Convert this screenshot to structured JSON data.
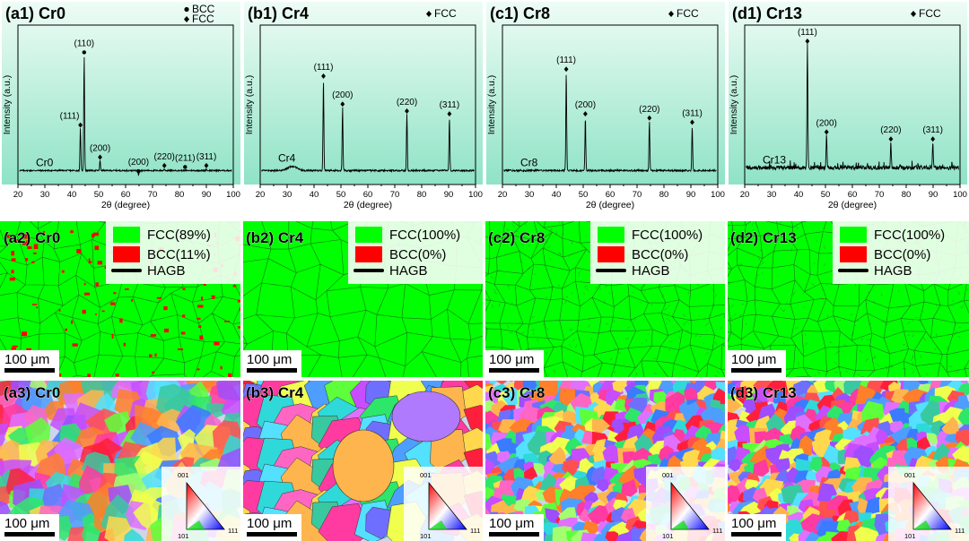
{
  "chart_data": [
    {
      "type": "line",
      "title": "(a1) Cr0",
      "sample_label": "Cr0",
      "xlabel": "2θ (degree)",
      "ylabel": "Intensity (a.u.)",
      "xlim": [
        20,
        100
      ],
      "xticks": [
        20,
        30,
        40,
        50,
        60,
        70,
        80,
        90,
        100
      ],
      "legend": [
        "BCC",
        "FCC"
      ],
      "baseline": 0.1,
      "peaks": [
        {
          "x": 43.2,
          "y": 0.4,
          "label": "(111)",
          "phase": "FCC"
        },
        {
          "x": 44.6,
          "y": 0.92,
          "label": "(110)",
          "phase": "BCC"
        },
        {
          "x": 50.5,
          "y": 0.17,
          "label": "(200)",
          "phase": "FCC"
        },
        {
          "x": 64.8,
          "y": 0.07,
          "label": "(200)",
          "phase": "BCC"
        },
        {
          "x": 74.4,
          "y": 0.11,
          "label": "(220)",
          "phase": "FCC"
        },
        {
          "x": 82.1,
          "y": 0.1,
          "label": "(211)",
          "phase": "BCC"
        },
        {
          "x": 90.0,
          "y": 0.11,
          "label": "(311)",
          "phase": "FCC"
        }
      ]
    },
    {
      "type": "line",
      "title": "(b1) Cr4",
      "sample_label": "Cr4",
      "xlabel": "2θ (degree)",
      "ylabel": "Intensity (a.u.)",
      "xlim": [
        20,
        100
      ],
      "xticks": [
        20,
        30,
        40,
        50,
        60,
        70,
        80,
        90,
        100
      ],
      "legend": [
        "FCC"
      ],
      "baseline": 0.1,
      "peaks": [
        {
          "x": 43.5,
          "y": 0.75,
          "label": "(111)",
          "phase": "FCC"
        },
        {
          "x": 50.6,
          "y": 0.55,
          "label": "(200)",
          "phase": "FCC"
        },
        {
          "x": 74.5,
          "y": 0.5,
          "label": "(220)",
          "phase": "FCC"
        },
        {
          "x": 90.3,
          "y": 0.48,
          "label": "(311)",
          "phase": "FCC"
        }
      ]
    },
    {
      "type": "line",
      "title": "(c1) Cr8",
      "sample_label": "Cr8",
      "xlabel": "2θ (degree)",
      "ylabel": "Intensity (a.u.)",
      "xlim": [
        20,
        100
      ],
      "xticks": [
        20,
        30,
        40,
        50,
        60,
        70,
        80,
        90,
        100
      ],
      "legend": [
        "FCC"
      ],
      "baseline": 0.1,
      "peaks": [
        {
          "x": 43.7,
          "y": 0.8,
          "label": "(111)",
          "phase": "FCC"
        },
        {
          "x": 50.8,
          "y": 0.48,
          "label": "(200)",
          "phase": "FCC"
        },
        {
          "x": 74.6,
          "y": 0.45,
          "label": "(220)",
          "phase": "FCC"
        },
        {
          "x": 90.5,
          "y": 0.42,
          "label": "(311)",
          "phase": "FCC"
        }
      ]
    },
    {
      "type": "line",
      "title": "(d1) Cr13",
      "sample_label": "Cr13",
      "xlabel": "2θ (degree)",
      "ylabel": "Intensity (a.u.)",
      "xlim": [
        20,
        100
      ],
      "xticks": [
        20,
        30,
        40,
        50,
        60,
        70,
        80,
        90,
        100
      ],
      "legend": [
        "FCC"
      ],
      "baseline": 0.12,
      "peaks": [
        {
          "x": 43.3,
          "y": 1.0,
          "label": "(111)",
          "phase": "FCC"
        },
        {
          "x": 50.4,
          "y": 0.35,
          "label": "(200)",
          "phase": "FCC"
        },
        {
          "x": 74.3,
          "y": 0.3,
          "label": "(220)",
          "phase": "FCC"
        },
        {
          "x": 89.9,
          "y": 0.3,
          "label": "(311)",
          "phase": "FCC"
        }
      ]
    }
  ],
  "ebsd_phase_maps": [
    {
      "title": "(a2) Cr0",
      "legend": [
        {
          "label": "FCC(89%)",
          "color": "#00ff00"
        },
        {
          "label": "BCC(11%)",
          "color": "#ff0000"
        },
        {
          "label": "HAGB",
          "color": "#000000"
        }
      ],
      "fcc_fraction": 0.89,
      "bcc_fraction": 0.11,
      "scale": "100 μm"
    },
    {
      "title": "(b2) Cr4",
      "legend": [
        {
          "label": "FCC(100%)",
          "color": "#00ff00"
        },
        {
          "label": "BCC(0%)",
          "color": "#ff0000"
        },
        {
          "label": "HAGB",
          "color": "#000000"
        }
      ],
      "fcc_fraction": 1.0,
      "bcc_fraction": 0.0,
      "scale": "100 μm"
    },
    {
      "title": "(c2) Cr8",
      "legend": [
        {
          "label": "FCC(100%)",
          "color": "#00ff00"
        },
        {
          "label": "BCC(0%)",
          "color": "#ff0000"
        },
        {
          "label": "HAGB",
          "color": "#000000"
        }
      ],
      "fcc_fraction": 1.0,
      "bcc_fraction": 0.0,
      "scale": "100 μm"
    },
    {
      "title": "(d2) Cr13",
      "legend": [
        {
          "label": "FCC(100%)",
          "color": "#00ff00"
        },
        {
          "label": "BCC(0%)",
          "color": "#ff0000"
        },
        {
          "label": "HAGB",
          "color": "#000000"
        }
      ],
      "fcc_fraction": 1.0,
      "bcc_fraction": 0.0,
      "scale": "100 μm"
    }
  ],
  "ebsd_ipf_maps": [
    {
      "title": "(a3) Cr0",
      "scale": "100 μm",
      "triangle_labels": [
        "001",
        "101",
        "111"
      ]
    },
    {
      "title": "(b3) Cr4",
      "scale": "100 μm",
      "triangle_labels": [
        "001",
        "101",
        "111"
      ]
    },
    {
      "title": "(c3) Cr8",
      "scale": "100 μm",
      "triangle_labels": [
        "001",
        "101",
        "111"
      ]
    },
    {
      "title": "(d3) Cr13",
      "scale": "100 μm",
      "triangle_labels": [
        "001",
        "101",
        "111"
      ]
    }
  ],
  "colors": {
    "xrd_bg_top": "#e9fbf3",
    "xrd_bg_bottom": "#8fe6c8",
    "fcc": "#00ff00",
    "bcc": "#ff0000",
    "hagb": "#000000",
    "scale_box": "#ffffff"
  }
}
